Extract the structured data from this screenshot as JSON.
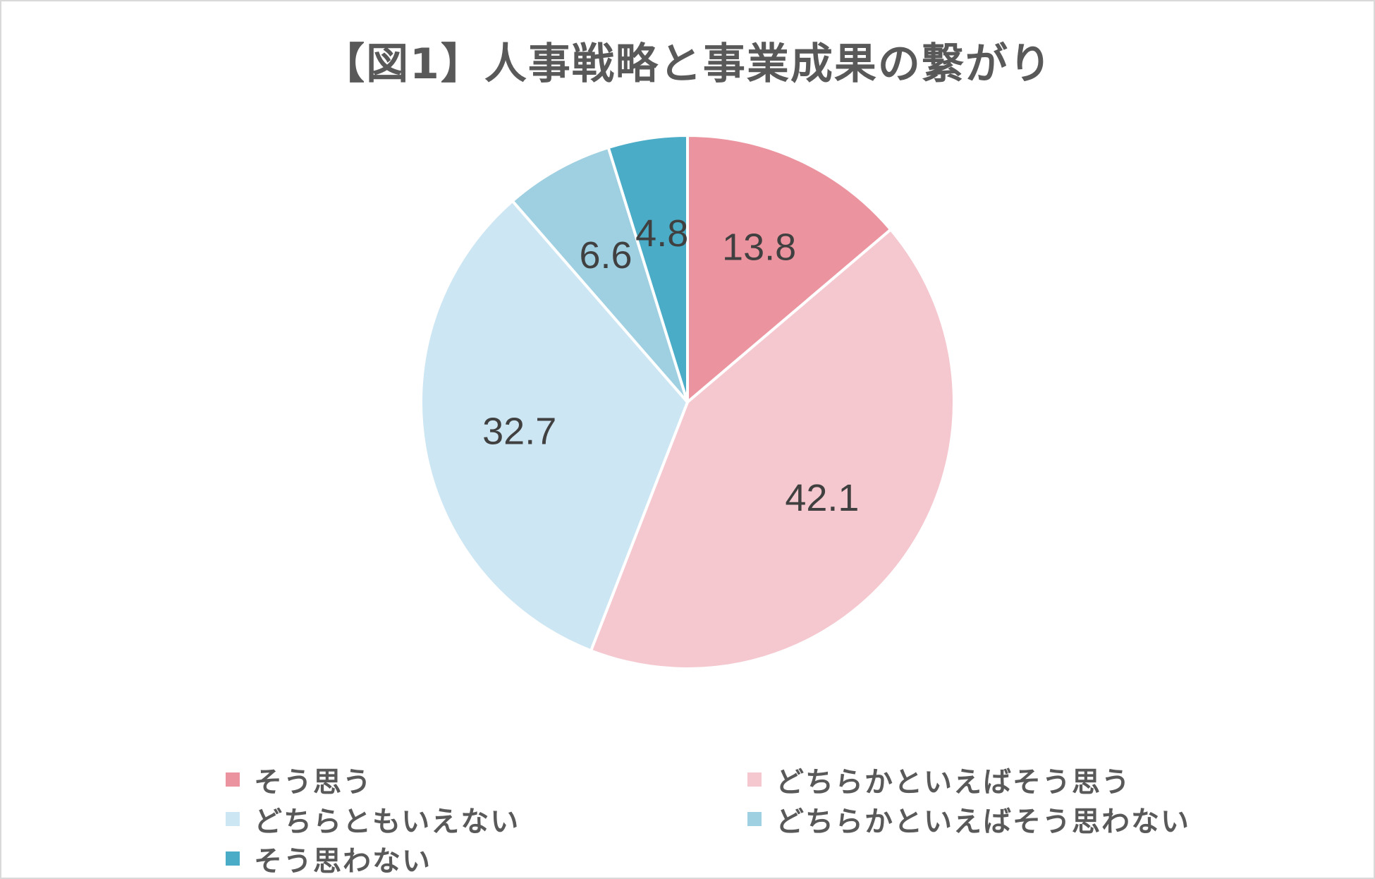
{
  "chart_data": {
    "type": "pie",
    "title": "【図1】人事戦略と事業成果の繋がり",
    "slices": [
      {
        "label": "そう思う",
        "value": 13.8,
        "color": "#eb949f"
      },
      {
        "label": "どちらかといえばそう思う",
        "value": 42.1,
        "color": "#f5c8d0"
      },
      {
        "label": "どちらともいえない",
        "value": 32.7,
        "color": "#cde6f3"
      },
      {
        "label": "どちらかといえばそう思わない",
        "value": 6.6,
        "color": "#9fd0e1"
      },
      {
        "label": "そう思わない",
        "value": 4.8,
        "color": "#4aacc6"
      }
    ],
    "legend_position": "bottom",
    "data_labels": true
  }
}
